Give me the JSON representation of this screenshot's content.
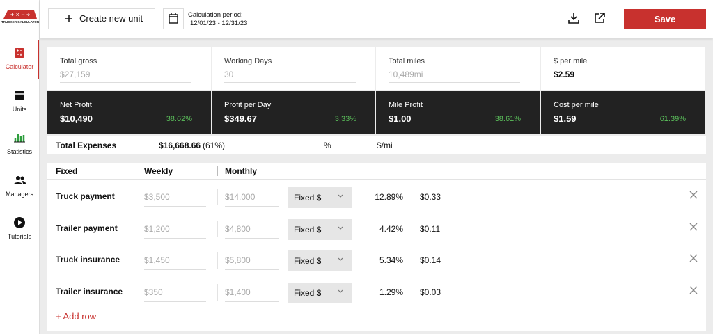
{
  "sidebar": {
    "logo": "TRUCKER CALCULATOR",
    "nav": [
      "Calculator",
      "Units",
      "Statistics",
      "Managers",
      "Tutorials"
    ]
  },
  "toolbar": {
    "create_button": "Create new unit",
    "period_label": "Calculation period:",
    "period": "12/01/23 - 12/31/23",
    "save_button": "Save"
  },
  "summary": {
    "cards": [
      {
        "label": "Total gross",
        "value": "$27,159"
      },
      {
        "label": "Working Days",
        "value": "30"
      },
      {
        "label": "Total miles",
        "value": "10,489mi"
      },
      {
        "label": "$ per mile",
        "value": "$2.59"
      }
    ]
  },
  "profit": {
    "cards": [
      {
        "label": "Net Profit",
        "value": "$10,490",
        "percent": "38.62%"
      },
      {
        "label": "Profit per Day",
        "value": "$349.67",
        "percent": "3.33%"
      },
      {
        "label": "Mile Profit",
        "value": "$1.00",
        "percent": "38.61%"
      },
      {
        "label": "Cost per mile",
        "value": "$1.59",
        "percent": "61.39%"
      }
    ]
  },
  "total_expenses": {
    "label": "Total Expenses",
    "value": "$16,668.66",
    "share": "(61%)",
    "percent_header": "%",
    "per_mile_header": "$/mi"
  },
  "fixed_table": {
    "columns": [
      "Fixed",
      "Weekly",
      "Monthly"
    ],
    "rows": [
      {
        "name": "Truck payment",
        "weekly": "$3,500",
        "monthly": "$14,000",
        "type": "Fixed $",
        "percent": "12.89%",
        "per_mile": "$0.33"
      },
      {
        "name": "Trailer payment",
        "weekly": "$1,200",
        "monthly": "$4,800",
        "type": "Fixed $",
        "percent": "4.42%",
        "per_mile": "$0.11"
      },
      {
        "name": "Truck insurance",
        "weekly": "$1,450",
        "monthly": "$5,800",
        "type": "Fixed $",
        "percent": "5.34%",
        "per_mile": "$0.14"
      },
      {
        "name": "Trailer insurance",
        "weekly": "$350",
        "monthly": "$1,400",
        "type": "Fixed $",
        "percent": "1.29%",
        "per_mile": "$0.03"
      }
    ],
    "add_row": "+ Add row"
  }
}
